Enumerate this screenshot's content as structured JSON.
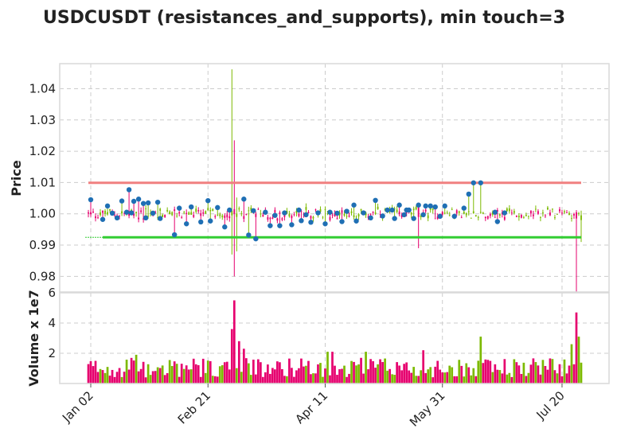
{
  "chart_data": {
    "type": "candlestick",
    "title": "USDCUSDT (resistances_and_supports), min touch=3",
    "price_panel": {
      "ylabel": "Price",
      "ylim": [
        0.975,
        1.048
      ],
      "yticks": [
        0.98,
        0.99,
        1.0,
        1.01,
        1.02,
        1.03,
        1.04
      ],
      "ytick_labels": [
        "0.98",
        "0.99",
        "1.00",
        "1.01",
        "1.02",
        "1.03",
        "1.04"
      ],
      "resistance": {
        "level": 1.0099,
        "start": 0,
        "end": 206,
        "color": "#f08080"
      },
      "support": {
        "level": 0.9925,
        "start": 6,
        "end": 206,
        "color": "#32cd32"
      },
      "up_color": "#7cba00",
      "down_color": "#e6006e",
      "touch_marker_color": "#1f6fb4",
      "touch_points": [
        [
          1,
          1.0045
        ],
        [
          6,
          0.9982
        ],
        [
          8,
          1.0025
        ],
        [
          10,
          1.0002
        ],
        [
          12,
          0.9987
        ],
        [
          14,
          1.0041
        ],
        [
          16,
          1.0005
        ],
        [
          17,
          1.0077
        ],
        [
          18,
          1.0003
        ],
        [
          19,
          1.004
        ],
        [
          21,
          1.0047
        ],
        [
          23,
          1.0033
        ],
        [
          24,
          0.9987
        ],
        [
          25,
          1.0035
        ],
        [
          27,
          1.0002
        ],
        [
          29,
          1.0037
        ],
        [
          30,
          0.9985
        ],
        [
          36,
          0.9933
        ],
        [
          38,
          1.0018
        ],
        [
          41,
          0.9968
        ],
        [
          43,
          1.0022
        ],
        [
          47,
          0.9974
        ],
        [
          50,
          1.0042
        ],
        [
          51,
          0.9977
        ],
        [
          54,
          1.002
        ],
        [
          57,
          0.9958
        ],
        [
          59,
          1.0012
        ],
        [
          65,
          1.0047
        ],
        [
          67,
          0.9932
        ],
        [
          69,
          1.001
        ],
        [
          70,
          0.992
        ],
        [
          74,
          1.0005
        ],
        [
          76,
          0.9962
        ],
        [
          78,
          0.9995
        ],
        [
          80,
          0.9962
        ],
        [
          82,
          1.0003
        ],
        [
          85,
          0.9965
        ],
        [
          88,
          1.0012
        ],
        [
          89,
          0.9978
        ],
        [
          91,
          0.9997
        ],
        [
          93,
          0.9973
        ],
        [
          96,
          1.0003
        ],
        [
          99,
          0.9968
        ],
        [
          101,
          1.0005
        ],
        [
          104,
          1.0002
        ],
        [
          106,
          0.9975
        ],
        [
          108,
          1.0008
        ],
        [
          111,
          1.0028
        ],
        [
          112,
          0.9977
        ],
        [
          115,
          1.0003
        ],
        [
          118,
          0.9987
        ],
        [
          120,
          1.0043
        ],
        [
          123,
          0.9993
        ],
        [
          125,
          1.0012
        ],
        [
          127,
          1.0012
        ],
        [
          128,
          0.9985
        ],
        [
          130,
          1.0028
        ],
        [
          132,
          0.9997
        ],
        [
          133,
          1.0012
        ],
        [
          134,
          1.0012
        ],
        [
          136,
          0.9985
        ],
        [
          138,
          1.0028
        ],
        [
          140,
          0.9997
        ],
        [
          141,
          1.0025
        ],
        [
          143,
          1.0025
        ],
        [
          145,
          1.0022
        ],
        [
          147,
          0.9992
        ],
        [
          149,
          1.0025
        ],
        [
          153,
          0.9992
        ],
        [
          157,
          1.0018
        ],
        [
          159,
          1.0063
        ],
        [
          161,
          1.0099
        ],
        [
          164,
          1.0099
        ],
        [
          170,
          1.0005
        ],
        [
          171,
          0.9975
        ],
        [
          174,
          1.0003
        ]
      ]
    },
    "volume_panel": {
      "ylabel": "Volume x 1e7",
      "ylim": [
        0,
        6
      ],
      "yticks": [
        2,
        4,
        6
      ],
      "ytick_labels": [
        "2",
        "4",
        "6"
      ]
    },
    "x_axis": {
      "n_candles": 207,
      "ticks": [
        {
          "index": 1,
          "label": "Jan 02"
        },
        {
          "index": 50,
          "label": "Feb 21"
        },
        {
          "index": 99,
          "label": "Apr 11"
        },
        {
          "index": 148,
          "label": "May 31"
        },
        {
          "index": 198,
          "label": "Jul 20"
        }
      ]
    },
    "grid": true,
    "legend": "none"
  }
}
